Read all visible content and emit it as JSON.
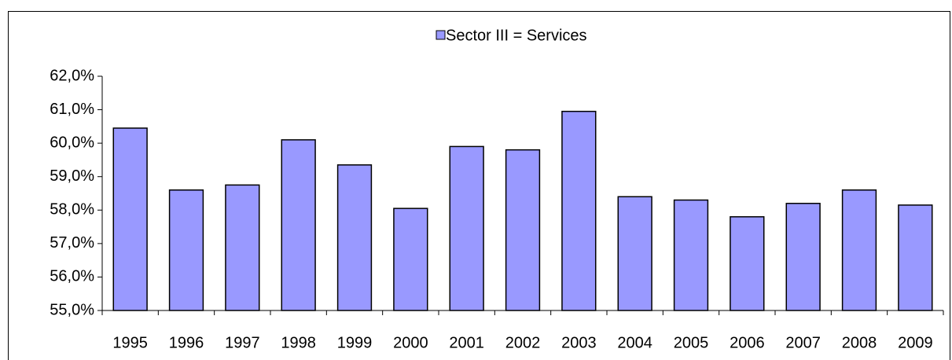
{
  "chart_data": {
    "type": "bar",
    "categories": [
      "1995",
      "1996",
      "1997",
      "1998",
      "1999",
      "2000",
      "2001",
      "2002",
      "2003",
      "2004",
      "2005",
      "2006",
      "2007",
      "2008",
      "2009"
    ],
    "series": [
      {
        "name": "Sector III =  Services",
        "color": "#9999ff",
        "values": [
          60.45,
          58.6,
          58.75,
          60.1,
          59.35,
          58.05,
          59.9,
          59.8,
          60.95,
          58.4,
          58.3,
          57.8,
          58.2,
          58.6,
          58.15
        ]
      }
    ],
    "ylim": [
      55,
      62
    ],
    "yticks": [
      {
        "value": 55,
        "label": "55,0%"
      },
      {
        "value": 56,
        "label": "56,0%"
      },
      {
        "value": 57,
        "label": "57,0%"
      },
      {
        "value": 58,
        "label": "58,0%"
      },
      {
        "value": 59,
        "label": "59,0%"
      },
      {
        "value": 60,
        "label": "60,0%"
      },
      {
        "value": 61,
        "label": "61,0%"
      },
      {
        "value": 62,
        "label": "62,0%"
      }
    ],
    "legend": "top"
  }
}
